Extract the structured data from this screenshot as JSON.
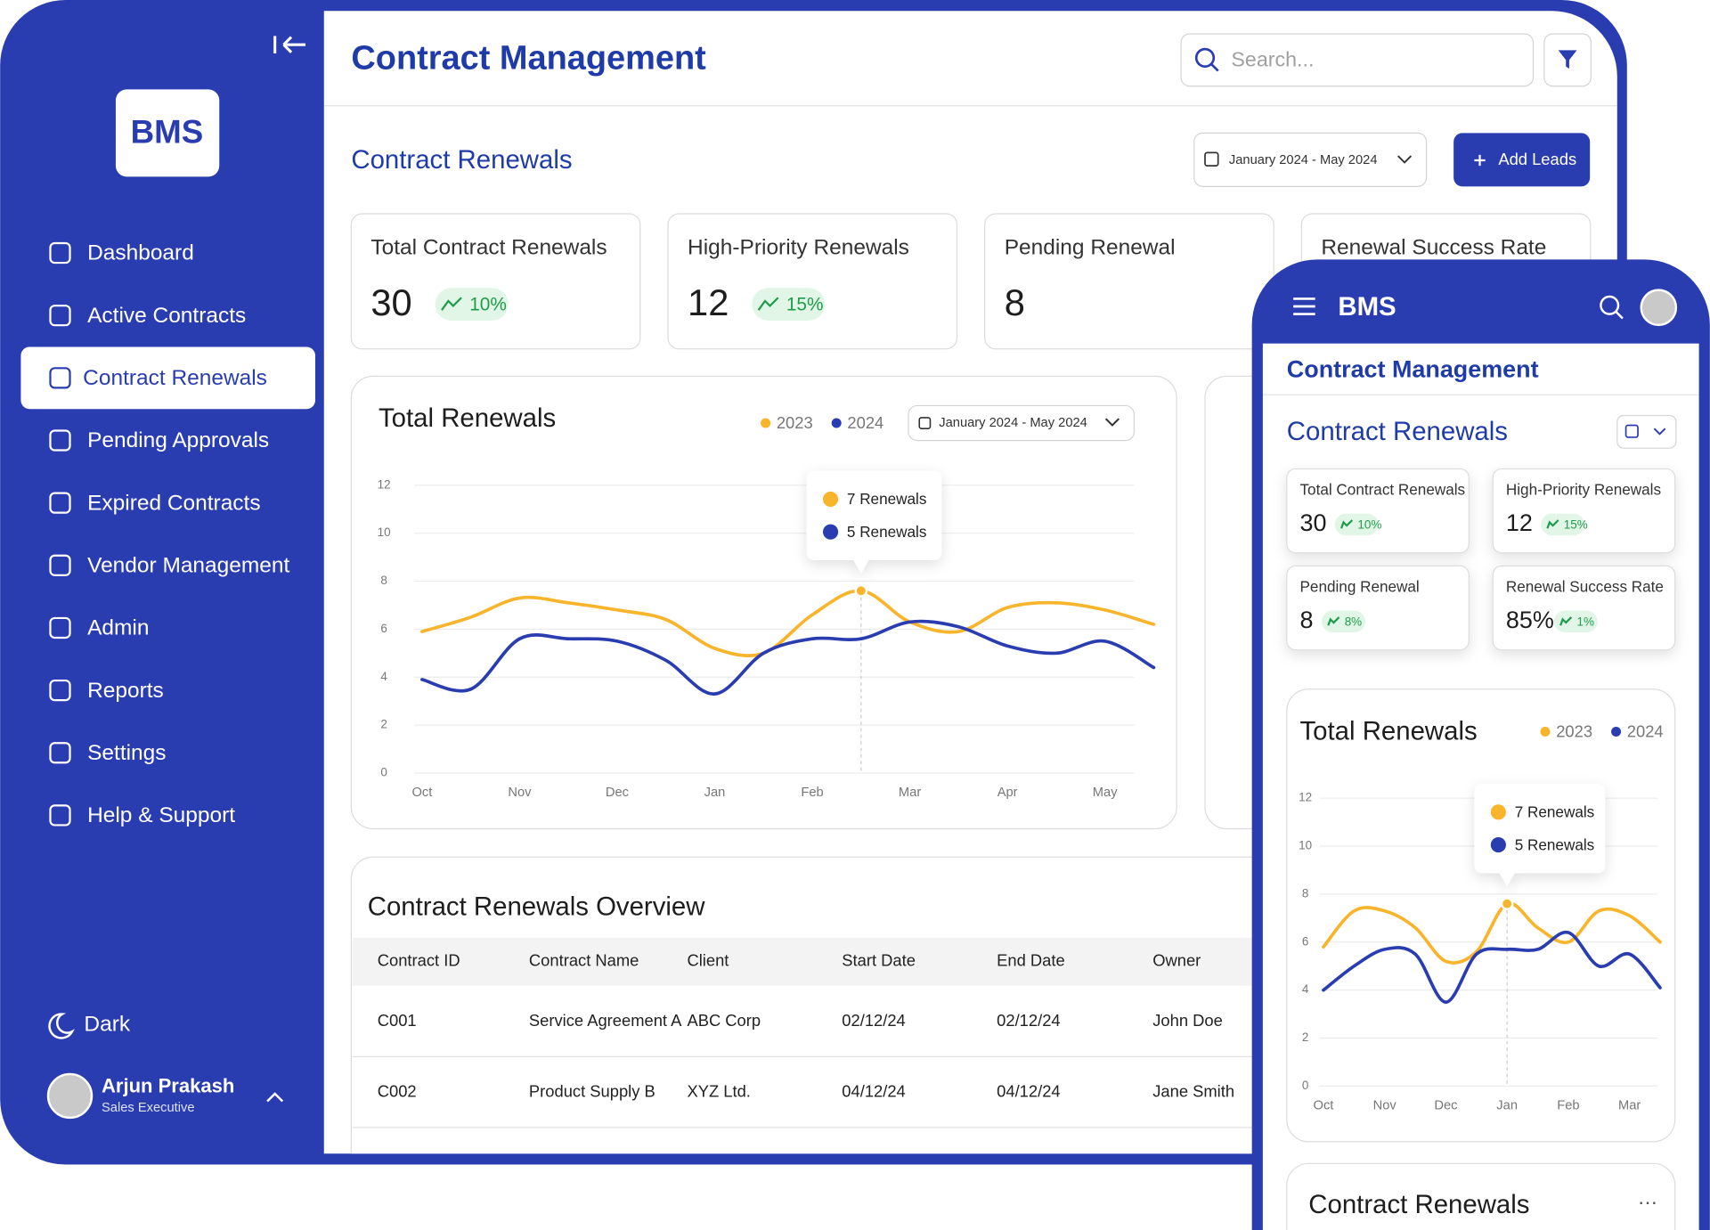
{
  "sidebar": {
    "logo": "BMS",
    "nav": [
      "Dashboard",
      "Active Contracts",
      "Contract Renewals",
      "Pending Approvals",
      "Expired Contracts",
      "Vendor Management",
      "Admin",
      "Reports",
      "Settings",
      "Help & Support"
    ],
    "theme": "Dark",
    "user": {
      "name": "Arjun Prakash",
      "role": "Sales Executive"
    }
  },
  "header": {
    "title": "Contract Management",
    "search_placeholder": "Search..."
  },
  "section": {
    "title": "Contract Renewals",
    "date_range": "January 2024 - May 2024",
    "button": "Add Leads"
  },
  "kpis": [
    {
      "label": "Total Contract Renewals",
      "value": 30,
      "change": "10%"
    },
    {
      "label": "High-Priority Renewals",
      "value": 12,
      "change": "15%"
    },
    {
      "label": "Pending Renewal",
      "value": 8,
      "change": "8%"
    },
    {
      "label": "Renewal Success Rate",
      "value": "85%",
      "change": "1%"
    }
  ],
  "chart": {
    "type": "line",
    "title": "Total Renewals",
    "date_range": "January 2024 - May 2024",
    "x": [
      0,
      0.5,
      1,
      1.5,
      2,
      2.5,
      3,
      3.5,
      4,
      4.5,
      5,
      5.5,
      6,
      6.5,
      7,
      7.5
    ],
    "xlim": [
      -0.1,
      7.5
    ],
    "xticks": [
      {
        "value": 0,
        "label": "Oct"
      },
      {
        "value": 1,
        "label": "Nov"
      },
      {
        "value": 2,
        "label": "Dec"
      },
      {
        "value": 3,
        "label": "Jan"
      },
      {
        "value": 4,
        "label": "Feb"
      },
      {
        "value": 5,
        "label": "Mar"
      },
      {
        "value": 6,
        "label": "Apr"
      },
      {
        "value": 7,
        "label": "May"
      }
    ],
    "ylim": [
      0,
      12
    ],
    "yticks": [
      0,
      2,
      4,
      6,
      8,
      10,
      12
    ],
    "grid": true,
    "series": [
      {
        "name": "2023",
        "color": "#f8b42b",
        "values": [
          5.9,
          6.5,
          7.3,
          7.1,
          6.8,
          6.4,
          5.2,
          5.0,
          6.6,
          7.6,
          6.3,
          5.9,
          6.9,
          7.1,
          6.8,
          6.2
        ]
      },
      {
        "name": "2024",
        "color": "#2a3db0",
        "values": [
          3.9,
          3.5,
          5.6,
          5.6,
          5.5,
          4.7,
          3.3,
          5.0,
          5.6,
          5.6,
          6.3,
          6.1,
          5.3,
          5.0,
          5.5,
          4.4
        ]
      }
    ],
    "tooltip": [
      "7 Renewals",
      "5 Renewals"
    ]
  },
  "table": {
    "title": "Contract Renewals Overview",
    "columns": [
      "Contract ID",
      "Contract Name",
      "Client",
      "Start Date",
      "End Date",
      "Owner"
    ],
    "rows": [
      [
        "C001",
        "Service Agreement A",
        "ABC Corp",
        "02/12/24",
        "02/12/24",
        "John Doe"
      ],
      [
        "C002",
        "Product Supply B",
        "XYZ Ltd.",
        "04/12/24",
        "04/12/24",
        "Jane Smith"
      ]
    ]
  },
  "mobile": {
    "brand": "BMS",
    "title": "Contract Management",
    "section": "Contract Renewals",
    "chart": {
      "type": "line",
      "title": "Total Renewals",
      "x": [
        0,
        0.5,
        1,
        1.5,
        2,
        2.5,
        3,
        3.5,
        4,
        4.5,
        5,
        5.5
      ],
      "xlim": [
        -0.1,
        5.6
      ],
      "xticks": [
        {
          "value": 0,
          "label": "Oct"
        },
        {
          "value": 1,
          "label": "Nov"
        },
        {
          "value": 2,
          "label": "Dec"
        },
        {
          "value": 3,
          "label": "Jan"
        },
        {
          "value": 4,
          "label": "Feb"
        },
        {
          "value": 5,
          "label": "Mar"
        }
      ],
      "ylim": [
        0,
        12
      ],
      "yticks": [
        0,
        2,
        4,
        6,
        8,
        10,
        12
      ],
      "grid": true,
      "series": [
        {
          "name": "2023",
          "color": "#f8b42b",
          "values": [
            5.8,
            7.3,
            7.3,
            6.6,
            5.2,
            5.6,
            7.6,
            6.6,
            6.0,
            7.3,
            7.1,
            6.0
          ]
        },
        {
          "name": "2024",
          "color": "#2a3db0",
          "values": [
            4.0,
            5.0,
            5.7,
            5.5,
            3.5,
            5.5,
            5.7,
            5.7,
            6.4,
            5.0,
            5.5,
            4.1
          ]
        }
      ],
      "tooltip": [
        "7 Renewals",
        "5 Renewals"
      ]
    },
    "bottom_card": "Contract Renewals"
  }
}
